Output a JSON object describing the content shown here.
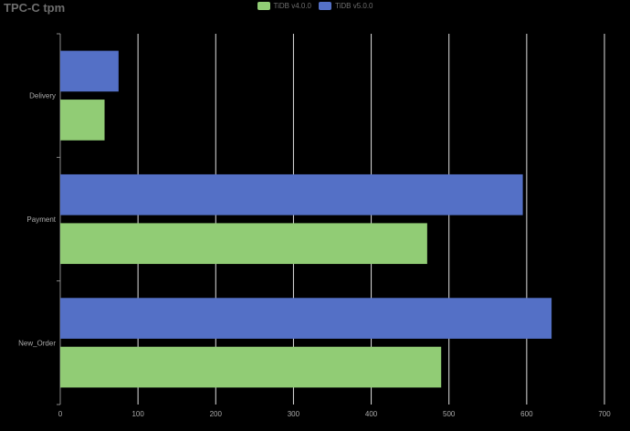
{
  "chart_data": {
    "type": "bar",
    "orientation": "horizontal",
    "title": "TPC-C tpm",
    "categories": [
      "Delivery",
      "Payment",
      "New_Order"
    ],
    "series": [
      {
        "name": "TiDB v4.0.0",
        "color": "#91cc75",
        "values": [
          57,
          472,
          490
        ]
      },
      {
        "name": "TiDB v5.0.0",
        "color": "#5470c6",
        "values": [
          75,
          595,
          632
        ]
      }
    ],
    "xlim": [
      0,
      700
    ],
    "xticks": [
      0,
      100,
      200,
      300,
      400,
      500,
      600,
      700
    ],
    "grid": true,
    "legend_position": "top"
  }
}
